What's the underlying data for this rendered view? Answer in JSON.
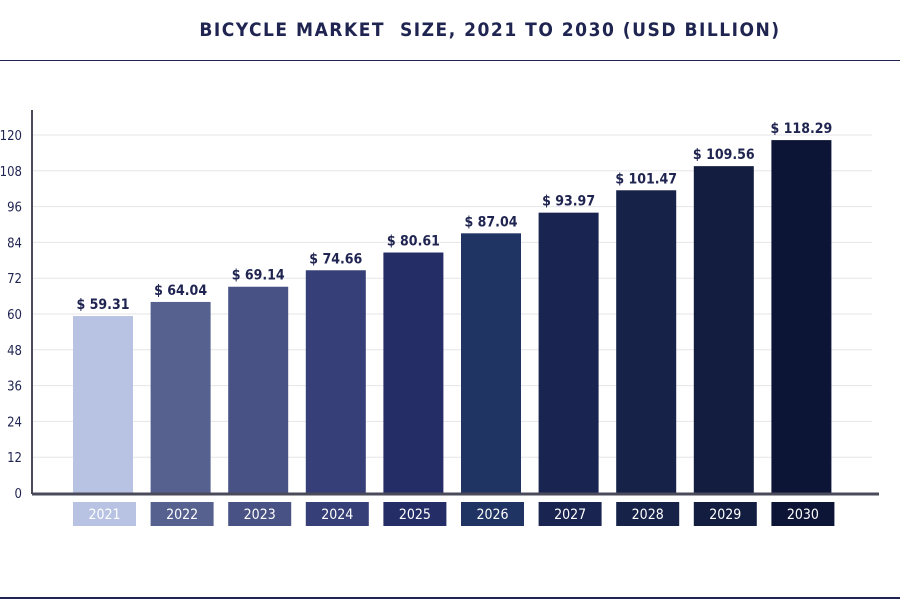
{
  "chart_data": {
    "type": "bar",
    "title": "BICYCLE MARKET  SIZE, 2021 TO 2030 (USD BILLION)",
    "xlabel": "",
    "ylabel": "",
    "categories": [
      "2021",
      "2022",
      "2023",
      "2024",
      "2025",
      "2026",
      "2027",
      "2028",
      "2029",
      "2030"
    ],
    "values": [
      59.31,
      64.04,
      69.14,
      74.66,
      80.61,
      87.04,
      93.97,
      101.47,
      109.56,
      118.29
    ],
    "value_labels": [
      "$ 59.31",
      "$ 64.04",
      "$ 69.14",
      "$ 74.66",
      "$ 80.61",
      "$ 87.04",
      "$ 93.97",
      "$ 101.47",
      "$ 109.56",
      "$ 118.29"
    ],
    "y_ticks": [
      "0",
      "12",
      "24",
      "36",
      "48",
      "60",
      "72",
      "84",
      "96",
      "108",
      "120"
    ],
    "ylim": [
      0,
      120
    ],
    "grid": true,
    "legend": "none",
    "bar_colors": [
      "#b8c3e3",
      "#566190",
      "#495285",
      "#363f77",
      "#252d66",
      "#1f3462",
      "#192451",
      "#162248",
      "#121d40",
      "#0c1535"
    ],
    "text_color": "#1f2450",
    "axis_color": "#4a4a5a",
    "grid_color": "#e6e6ea"
  }
}
